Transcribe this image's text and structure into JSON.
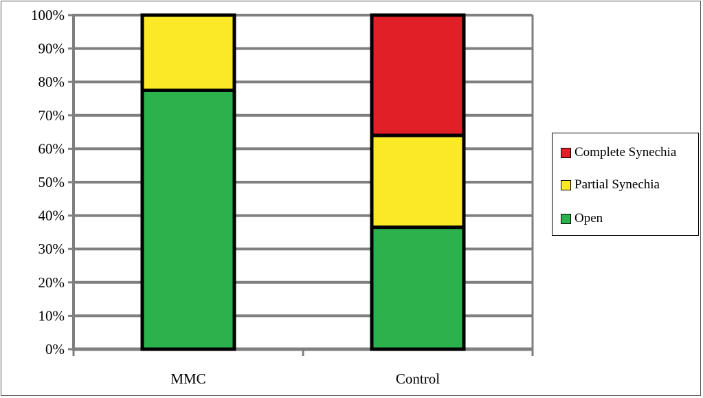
{
  "chart_data": {
    "type": "bar",
    "stacked": true,
    "title": "",
    "xlabel": "",
    "ylabel": "",
    "ylim": [
      0,
      100
    ],
    "y_unit": "%",
    "y_ticks": [
      "0%",
      "10%",
      "20%",
      "30%",
      "40%",
      "50%",
      "60%",
      "70%",
      "80%",
      "90%",
      "100%"
    ],
    "categories": [
      "MMC",
      "Control"
    ],
    "series": [
      {
        "name": "Open",
        "color": "#2bb24c",
        "values": [
          77.5,
          36.5
        ]
      },
      {
        "name": "Partial Synechia",
        "color": "#fbe928",
        "values": [
          22.5,
          27.5
        ]
      },
      {
        "name": "Complete Synechia",
        "color": "#e11f26",
        "values": [
          0,
          36
        ]
      }
    ],
    "grid": true,
    "legend_placement": "right",
    "legend_order": [
      "Complete Synechia",
      "Partial Synechia",
      "Open"
    ]
  }
}
